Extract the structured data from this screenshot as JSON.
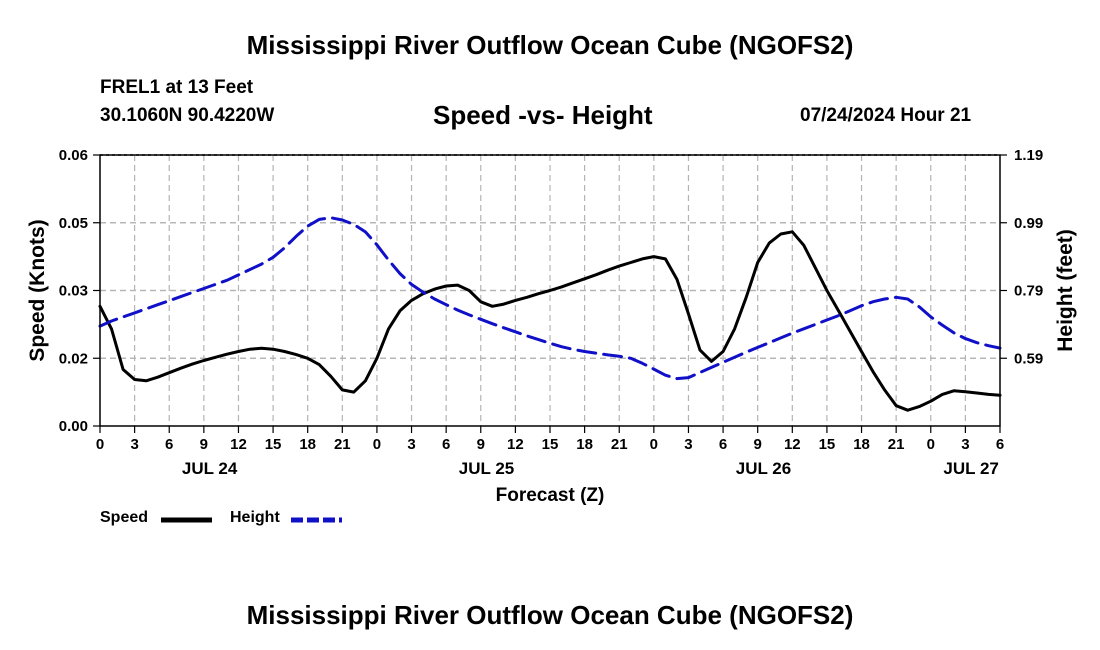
{
  "header": {
    "title": "Mississippi River Outflow Ocean Cube (NGOFS2)",
    "station": "FREL1 at 13 Feet",
    "coordinates": "30.1060N  90.4220W",
    "subtitle": "Speed -vs- Height",
    "datetime": "07/24/2024 Hour 21"
  },
  "legend": {
    "speed_label": "Speed",
    "height_label": "Height"
  },
  "footer": {
    "title": "Mississippi River Outflow Ocean Cube (NGOFS2)"
  },
  "colors": {
    "speed": "#000000",
    "height": "#1010c8",
    "grid": "#b4b4b4"
  },
  "chart_data": {
    "type": "line",
    "title": "Speed -vs- Height",
    "xlabel": "Forecast (Z)",
    "ylabel": "Speed (Knots)",
    "y2label": "Height (feet)",
    "xlim": [
      0,
      78
    ],
    "ylim": [
      0.0,
      0.06
    ],
    "y2lim": [
      0.39,
      1.19
    ],
    "x_ticks": [
      0,
      3,
      6,
      9,
      12,
      15,
      18,
      21,
      24,
      27,
      30,
      33,
      36,
      39,
      42,
      45,
      48,
      51,
      54,
      57,
      60,
      63,
      66,
      69,
      72,
      75,
      78
    ],
    "x_tick_labels": [
      "0",
      "3",
      "6",
      "9",
      "12",
      "15",
      "18",
      "21",
      "0",
      "3",
      "6",
      "9",
      "12",
      "15",
      "18",
      "21",
      "0",
      "3",
      "6",
      "9",
      "12",
      "15",
      "18",
      "21",
      "0",
      "3",
      "6"
    ],
    "date_labels": [
      {
        "x": 9.5,
        "label": "JUL 24"
      },
      {
        "x": 33.5,
        "label": "JUL 25"
      },
      {
        "x": 57.5,
        "label": "JUL 26"
      },
      {
        "x": 75.5,
        "label": "JUL 27"
      }
    ],
    "y_ticks": [
      0.0,
      0.015,
      0.03,
      0.045,
      0.06
    ],
    "y_tick_labels": [
      "0.00",
      "0.02",
      "0.03",
      "0.05",
      "0.06"
    ],
    "y2_ticks": [
      0.59,
      0.79,
      0.99,
      1.19
    ],
    "y2_tick_labels": [
      "0.59",
      "0.79",
      "0.99",
      "1.19"
    ],
    "series": [
      {
        "name": "Speed",
        "axis": "left",
        "style": "solid",
        "x": [
          0,
          1,
          2,
          3,
          4,
          5,
          6,
          7,
          8,
          9,
          10,
          11,
          12,
          13,
          14,
          15,
          16,
          17,
          18,
          19,
          20,
          21,
          22,
          23,
          24,
          25,
          26,
          27,
          28,
          29,
          30,
          31,
          32,
          33,
          34,
          35,
          36,
          37,
          38,
          39,
          40,
          41,
          42,
          43,
          44,
          45,
          46,
          47,
          48,
          49,
          50,
          51,
          52,
          53,
          54,
          55,
          56,
          57,
          58,
          59,
          60,
          61,
          62,
          63,
          64,
          65,
          66,
          67,
          68,
          69,
          70,
          71,
          72,
          73,
          74,
          75,
          76,
          77,
          78
        ],
        "values": [
          0.0265,
          0.0215,
          0.0125,
          0.0103,
          0.01,
          0.0108,
          0.0118,
          0.0128,
          0.0137,
          0.0145,
          0.0152,
          0.0159,
          0.0165,
          0.017,
          0.0172,
          0.017,
          0.0165,
          0.0158,
          0.015,
          0.0136,
          0.011,
          0.008,
          0.0075,
          0.01,
          0.015,
          0.0215,
          0.0255,
          0.0278,
          0.0293,
          0.0303,
          0.031,
          0.0312,
          0.03,
          0.0275,
          0.0265,
          0.027,
          0.0278,
          0.0285,
          0.0293,
          0.03,
          0.0308,
          0.0317,
          0.0326,
          0.0335,
          0.0345,
          0.0354,
          0.0362,
          0.037,
          0.0375,
          0.037,
          0.0325,
          0.0248,
          0.0168,
          0.0143,
          0.0165,
          0.0215,
          0.0285,
          0.0362,
          0.0405,
          0.0425,
          0.043,
          0.04,
          0.035,
          0.03,
          0.0255,
          0.021,
          0.0165,
          0.012,
          0.008,
          0.0045,
          0.0035,
          0.0043,
          0.0055,
          0.007,
          0.0078,
          0.0076,
          0.0073,
          0.007,
          0.0068
        ]
      },
      {
        "name": "Height",
        "axis": "right",
        "style": "dashed",
        "x": [
          0,
          1,
          2,
          3,
          4,
          5,
          6,
          7,
          8,
          9,
          10,
          11,
          12,
          13,
          14,
          15,
          16,
          17,
          18,
          19,
          20,
          21,
          22,
          23,
          24,
          25,
          26,
          27,
          28,
          29,
          30,
          31,
          32,
          33,
          34,
          35,
          36,
          37,
          38,
          39,
          40,
          41,
          42,
          43,
          44,
          45,
          46,
          47,
          48,
          49,
          50,
          51,
          52,
          53,
          54,
          55,
          56,
          57,
          58,
          59,
          60,
          61,
          62,
          63,
          64,
          65,
          66,
          67,
          68,
          69,
          70,
          71,
          72,
          73,
          74,
          75,
          76,
          77,
          78
        ],
        "values": [
          0.685,
          0.7,
          0.712,
          0.724,
          0.736,
          0.748,
          0.76,
          0.772,
          0.784,
          0.796,
          0.808,
          0.82,
          0.836,
          0.852,
          0.868,
          0.888,
          0.916,
          0.95,
          0.98,
          1.0,
          1.005,
          0.998,
          0.985,
          0.963,
          0.925,
          0.88,
          0.84,
          0.808,
          0.785,
          0.765,
          0.748,
          0.732,
          0.718,
          0.705,
          0.692,
          0.68,
          0.668,
          0.656,
          0.645,
          0.634,
          0.624,
          0.616,
          0.61,
          0.605,
          0.6,
          0.596,
          0.59,
          0.575,
          0.558,
          0.54,
          0.53,
          0.533,
          0.548,
          0.563,
          0.578,
          0.593,
          0.608,
          0.622,
          0.636,
          0.65,
          0.664,
          0.677,
          0.69,
          0.703,
          0.716,
          0.73,
          0.745,
          0.757,
          0.765,
          0.77,
          0.765,
          0.742,
          0.712,
          0.688,
          0.665,
          0.648,
          0.636,
          0.627,
          0.62
        ]
      }
    ]
  }
}
